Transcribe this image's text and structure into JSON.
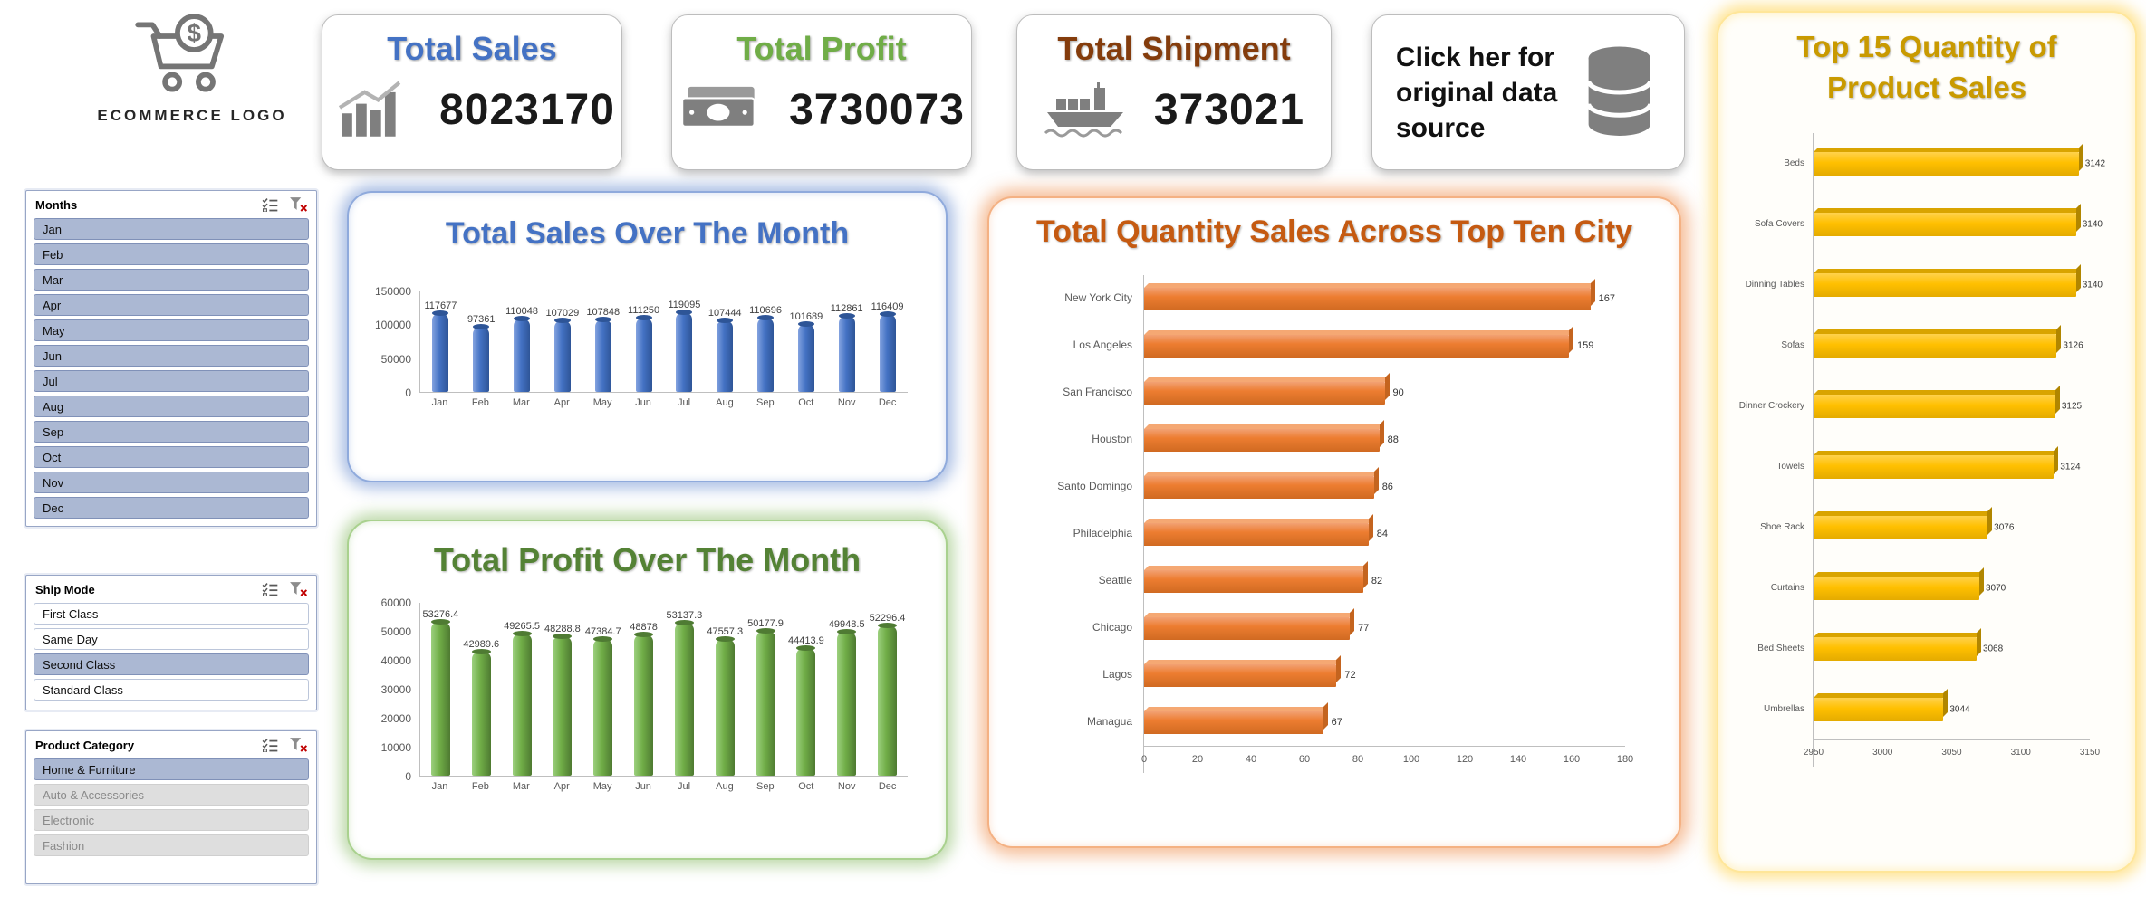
{
  "logo": {
    "label": "ECOMMERCE LOGO"
  },
  "kpis": {
    "sales": {
      "title": "Total Sales",
      "value": "8023170",
      "accent": "#4472C4",
      "icon": "bar-chart-icon"
    },
    "profit": {
      "title": "Total Profit",
      "value": "3730073",
      "accent": "#70AD47",
      "icon": "money-icon"
    },
    "shipment": {
      "title": "Total Shipment",
      "value": "373021",
      "accent": "#843C0C",
      "icon": "ship-icon"
    },
    "source": {
      "label": "Click her for original data source",
      "icon": "database-icon"
    }
  },
  "slicers": [
    {
      "title": "Months",
      "items": [
        {
          "label": "Jan",
          "state": "selected"
        },
        {
          "label": "Feb",
          "state": "selected"
        },
        {
          "label": "Mar",
          "state": "selected"
        },
        {
          "label": "Apr",
          "state": "selected"
        },
        {
          "label": "May",
          "state": "selected"
        },
        {
          "label": "Jun",
          "state": "selected"
        },
        {
          "label": "Jul",
          "state": "selected"
        },
        {
          "label": "Aug",
          "state": "selected"
        },
        {
          "label": "Sep",
          "state": "selected"
        },
        {
          "label": "Oct",
          "state": "selected"
        },
        {
          "label": "Nov",
          "state": "selected"
        },
        {
          "label": "Dec",
          "state": "selected"
        }
      ]
    },
    {
      "title": "Ship Mode",
      "items": [
        {
          "label": "First Class",
          "state": "unselected"
        },
        {
          "label": "Same Day",
          "state": "unselected"
        },
        {
          "label": "Second Class",
          "state": "selected"
        },
        {
          "label": "Standard Class",
          "state": "unselected"
        }
      ]
    },
    {
      "title": "Product Category",
      "items": [
        {
          "label": "Home & Furniture",
          "state": "selected"
        },
        {
          "label": "Auto & Accessories",
          "state": "disabled"
        },
        {
          "label": "Electronic",
          "state": "disabled"
        },
        {
          "label": "Fashion",
          "state": "disabled"
        }
      ]
    }
  ],
  "chart_data": [
    {
      "type": "bar",
      "title": "Total Sales Over The Month",
      "categories": [
        "Jan",
        "Feb",
        "Mar",
        "Apr",
        "May",
        "Jun",
        "Jul",
        "Aug",
        "Sep",
        "Oct",
        "Nov",
        "Dec"
      ],
      "values": [
        117677,
        97361,
        110048,
        107029,
        107848,
        111250,
        119095,
        107444,
        110696,
        101689,
        112861,
        116409
      ],
      "xlabel": "",
      "ylabel": "",
      "ylim": [
        0,
        150000
      ],
      "yticks": [
        0,
        50000,
        100000,
        150000
      ],
      "grid": false,
      "legend": "none",
      "color": "#4472C4",
      "title_color": "#4472C4"
    },
    {
      "type": "bar",
      "title": "Total Profit Over The Month",
      "categories": [
        "Jan",
        "Feb",
        "Mar",
        "Apr",
        "May",
        "Jun",
        "Jul",
        "Aug",
        "Sep",
        "Oct",
        "Nov",
        "Dec"
      ],
      "values": [
        53276.4,
        42989.6,
        49265.5,
        48288.8,
        47384.7,
        48878,
        53137.3,
        47557.3,
        50177.9,
        44413.9,
        49948.5,
        52296.4
      ],
      "xlabel": "",
      "ylabel": "",
      "ylim": [
        0,
        60000
      ],
      "yticks": [
        0,
        10000,
        20000,
        30000,
        40000,
        50000,
        60000
      ],
      "grid": false,
      "legend": "none",
      "color": "#70AD47",
      "title_color": "#548235"
    },
    {
      "type": "bar-horizontal",
      "title": "Total Quantity Sales Across Top Ten City",
      "categories": [
        "New York City",
        "Los Angeles",
        "San Francisco",
        "Houston",
        "Santo Domingo",
        "Philadelphia",
        "Seattle",
        "Chicago",
        "Lagos",
        "Managua"
      ],
      "values": [
        167,
        159,
        90,
        88,
        86,
        84,
        82,
        77,
        72,
        67
      ],
      "xlabel": "",
      "ylabel": "",
      "xlim": [
        0,
        180
      ],
      "xticks": [
        0,
        20,
        40,
        60,
        80,
        100,
        120,
        140,
        160,
        180
      ],
      "grid": false,
      "legend": "none",
      "color": "#ED7D31",
      "title_color": "#C55A11"
    },
    {
      "type": "bar-horizontal",
      "title": "Top 15 Quantity of Product Sales",
      "categories": [
        "Beds",
        "Sofa Covers",
        "Dinning Tables",
        "Sofas",
        "Dinner Crockery",
        "Towels",
        "Shoe Rack",
        "Curtains",
        "Bed Sheets",
        "Umbrellas"
      ],
      "values": [
        3142,
        3140,
        3140,
        3126,
        3125,
        3124,
        3076,
        3070,
        3068,
        3044
      ],
      "xlabel": "",
      "ylabel": "",
      "xlim": [
        2950,
        3150
      ],
      "xticks": [
        2950,
        3000,
        3050,
        3100,
        3150
      ],
      "grid": false,
      "legend": "none",
      "color": "#FFC000",
      "title_color": "#C99A00"
    }
  ]
}
